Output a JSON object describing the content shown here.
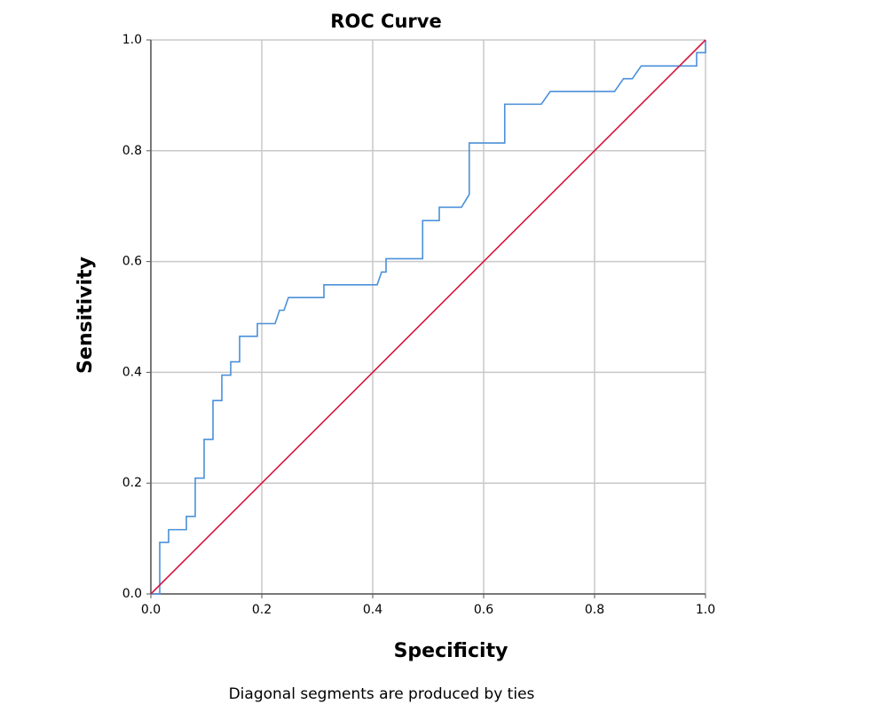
{
  "chart_data": {
    "type": "line",
    "title": "ROC Curve",
    "x_label": "Specificity",
    "y_label": "Sensitivity",
    "footnote": "Diagonal segments are produced by ties",
    "xlim": [
      0,
      1
    ],
    "ylim": [
      0,
      1
    ],
    "xticks": [
      {
        "value": 0,
        "label": "0.0"
      },
      0.2,
      0.4,
      0.6,
      0.8,
      {
        "value": 1,
        "label": "1.0"
      }
    ],
    "yticks": [
      {
        "value": 0,
        "label": "0.0"
      },
      0.2,
      0.4,
      0.6,
      0.8,
      {
        "value": 1,
        "label": "1.0"
      }
    ],
    "grid": true,
    "series": [
      {
        "color": "#4a90d9",
        "x": [
          0,
          0.016,
          0.016,
          0.032,
          0.032,
          0.064,
          0.064,
          0.08,
          0.08,
          0.096,
          0.096,
          0.112,
          0.112,
          0.128,
          0.128,
          0.144,
          0.144,
          0.16,
          0.16,
          0.192,
          0.192,
          0.224,
          0.232,
          0.24,
          0.248,
          0.312,
          0.312,
          0.408,
          0.416,
          0.424,
          0.424,
          0.49,
          0.49,
          0.52,
          0.52,
          0.56,
          0.574,
          0.574,
          0.638,
          0.638,
          0.704,
          0.72,
          0.836,
          0.852,
          0.868,
          0.884,
          0.984,
          0.984,
          1,
          1
        ],
        "values": [
          0,
          0,
          0.093,
          0.093,
          0.116,
          0.116,
          0.14,
          0.14,
          0.209,
          0.209,
          0.279,
          0.279,
          0.349,
          0.349,
          0.395,
          0.395,
          0.419,
          0.419,
          0.465,
          0.465,
          0.488,
          0.488,
          0.512,
          0.512,
          0.535,
          0.535,
          0.558,
          0.558,
          0.581,
          0.581,
          0.605,
          0.605,
          0.674,
          0.674,
          0.698,
          0.698,
          0.721,
          0.814,
          0.814,
          0.884,
          0.884,
          0.907,
          0.907,
          0.93,
          0.93,
          0.953,
          0.953,
          0.977,
          0.977,
          1
        ]
      },
      {
        "color": "#d5153f",
        "x": [
          0,
          1
        ],
        "values": [
          0,
          1
        ]
      }
    ]
  }
}
